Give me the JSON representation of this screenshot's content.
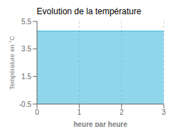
{
  "chart_data": {
    "type": "area",
    "title": "Evolution de la température",
    "xlabel": "heure par heure",
    "ylabel": "Température en °C",
    "x": [
      0,
      3
    ],
    "values": [
      4.8,
      4.8
    ],
    "xlim": [
      0,
      3
    ],
    "ylim": [
      -0.5,
      5.5
    ],
    "xticks": [
      0,
      1,
      2,
      3
    ],
    "yticks": [
      -0.5,
      1.5,
      3.5,
      5.5
    ],
    "color": "#44bbdd",
    "grid": "x"
  }
}
